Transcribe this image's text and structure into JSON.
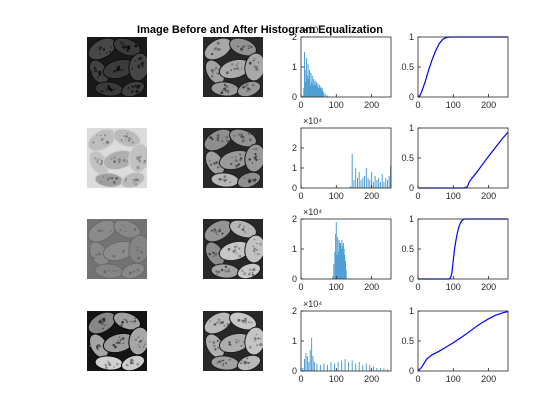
{
  "figure": {
    "title": "Image Before and After Histogram Equalization"
  },
  "rows": [
    {
      "original_image": {
        "tone": "dark-low-contrast"
      },
      "equalized_image": {
        "tone": "equalized"
      },
      "histogram": {
        "type": "bar",
        "exponent_label": "×10",
        "xlim": [
          0,
          255
        ],
        "ylim": [
          0,
          2
        ],
        "xticks": [
          "0",
          "100",
          "200"
        ],
        "yticks": [
          "0",
          "1",
          "2"
        ],
        "x": [
          5,
          8,
          10,
          12,
          14,
          16,
          18,
          20,
          22,
          24,
          26,
          28,
          30,
          32,
          34,
          36,
          38,
          40,
          42,
          44,
          46,
          48,
          50,
          52,
          54,
          56,
          58,
          60,
          62,
          65,
          70,
          75,
          80
        ],
        "values": [
          0.05,
          0.3,
          1.5,
          0.9,
          0.5,
          1.3,
          0.7,
          1.1,
          0.6,
          0.9,
          0.4,
          0.8,
          0.5,
          0.7,
          0.4,
          0.6,
          0.45,
          0.55,
          0.4,
          0.5,
          0.35,
          0.45,
          0.3,
          0.4,
          0.3,
          0.35,
          0.25,
          0.3,
          0.2,
          0.15,
          0.1,
          0.05,
          0.02
        ]
      },
      "cdf": {
        "type": "line",
        "xlim": [
          0,
          255
        ],
        "ylim": [
          0,
          1
        ],
        "xticks": [
          "0",
          "100",
          "200"
        ],
        "yticks": [
          "0",
          "0.5",
          "1"
        ],
        "x": [
          0,
          5,
          10,
          20,
          30,
          40,
          50,
          60,
          70,
          80,
          90,
          100,
          255
        ],
        "y": [
          0,
          0.02,
          0.08,
          0.25,
          0.45,
          0.62,
          0.77,
          0.89,
          0.96,
          0.99,
          1,
          1,
          1
        ]
      }
    },
    {
      "original_image": {
        "tone": "bright"
      },
      "equalized_image": {
        "tone": "equalized"
      },
      "histogram": {
        "type": "bar",
        "exponent_label": "×10⁴",
        "xlim": [
          0,
          255
        ],
        "ylim": [
          0,
          3
        ],
        "xticks": [
          "0",
          "100",
          "200"
        ],
        "yticks": [
          "0",
          "1",
          "2"
        ],
        "x": [
          140,
          145,
          150,
          155,
          160,
          165,
          170,
          175,
          180,
          185,
          190,
          195,
          200,
          205,
          210,
          215,
          220,
          225,
          230,
          235,
          240,
          245,
          250,
          254
        ],
        "values": [
          0.1,
          1.7,
          0.4,
          1.0,
          0.5,
          0.8,
          0.4,
          0.5,
          0.6,
          1.0,
          0.5,
          0.4,
          0.8,
          0.3,
          0.6,
          0.4,
          0.5,
          0.3,
          0.7,
          0.3,
          0.5,
          0.4,
          0.6,
          1.1
        ]
      },
      "cdf": {
        "type": "line",
        "xlim": [
          0,
          255
        ],
        "ylim": [
          0,
          1
        ],
        "xticks": [
          "0",
          "100",
          "200"
        ],
        "yticks": [
          "0",
          "0.5",
          "1"
        ],
        "x": [
          0,
          130,
          140,
          145,
          155,
          165,
          180,
          200,
          220,
          240,
          255
        ],
        "y": [
          0,
          0,
          0.02,
          0.1,
          0.18,
          0.25,
          0.37,
          0.53,
          0.68,
          0.83,
          0.93
        ]
      }
    },
    {
      "original_image": {
        "tone": "gray-low-contrast"
      },
      "equalized_image": {
        "tone": "equalized"
      },
      "histogram": {
        "type": "bar",
        "exponent_label": "×10⁴",
        "xlim": [
          0,
          255
        ],
        "ylim": [
          0,
          2
        ],
        "xticks": [
          "0",
          "100",
          "200"
        ],
        "yticks": [
          "0",
          "1",
          "2"
        ],
        "x": [
          90,
          93,
          96,
          98,
          100,
          102,
          104,
          106,
          108,
          110,
          112,
          114,
          116,
          118,
          120,
          122,
          124,
          126,
          128
        ],
        "values": [
          0.1,
          0.5,
          0.9,
          1.5,
          1.9,
          0.8,
          1.4,
          0.9,
          1.3,
          1.2,
          1.2,
          1.0,
          1.3,
          1.1,
          1.2,
          1.0,
          0.8,
          0.6,
          0.3
        ]
      },
      "cdf": {
        "type": "line",
        "xlim": [
          0,
          255
        ],
        "ylim": [
          0,
          1
        ],
        "xticks": [
          "0",
          "100",
          "200"
        ],
        "yticks": [
          "0",
          "0.5",
          "1"
        ],
        "x": [
          0,
          88,
          92,
          96,
          100,
          104,
          108,
          112,
          116,
          120,
          124,
          128,
          132,
          255
        ],
        "y": [
          0,
          0,
          0.02,
          0.1,
          0.32,
          0.52,
          0.66,
          0.78,
          0.87,
          0.93,
          0.97,
          0.99,
          1,
          1
        ]
      }
    },
    {
      "original_image": {
        "tone": "full-range"
      },
      "equalized_image": {
        "tone": "equalized"
      },
      "histogram": {
        "type": "bar",
        "exponent_label": "×10⁴",
        "xlim": [
          0,
          255
        ],
        "ylim": [
          0,
          2
        ],
        "xticks": [
          "0",
          "100",
          "200"
        ],
        "yticks": [
          "0",
          "1",
          "2"
        ],
        "x": [
          5,
          10,
          14,
          18,
          22,
          26,
          30,
          34,
          38,
          45,
          55,
          65,
          75,
          85,
          95,
          105,
          115,
          125,
          135,
          145,
          155,
          165,
          175,
          185,
          195,
          205,
          215,
          225,
          235,
          245
        ],
        "values": [
          0.1,
          0.4,
          0.6,
          0.5,
          0.3,
          0.7,
          1.1,
          0.5,
          0.3,
          0.25,
          0.2,
          0.25,
          0.2,
          0.3,
          0.25,
          0.3,
          0.35,
          0.4,
          0.3,
          0.35,
          0.25,
          0.3,
          0.2,
          0.25,
          0.2,
          0.15,
          0.1,
          0.1,
          0.08,
          0.05
        ]
      },
      "cdf": {
        "type": "line",
        "xlim": [
          0,
          255
        ],
        "ylim": [
          0,
          1
        ],
        "xticks": [
          "0",
          "100",
          "200"
        ],
        "yticks": [
          "0",
          "0.5",
          "1"
        ],
        "x": [
          0,
          10,
          25,
          40,
          60,
          80,
          100,
          120,
          140,
          160,
          180,
          200,
          220,
          240,
          255
        ],
        "y": [
          0,
          0.06,
          0.2,
          0.27,
          0.33,
          0.4,
          0.47,
          0.55,
          0.63,
          0.72,
          0.8,
          0.87,
          0.93,
          0.97,
          0.99
        ]
      }
    }
  ],
  "colors": {
    "bar": "#4f9fd6",
    "line": "#0000ff",
    "axis": "#262626",
    "text": "#262626"
  }
}
